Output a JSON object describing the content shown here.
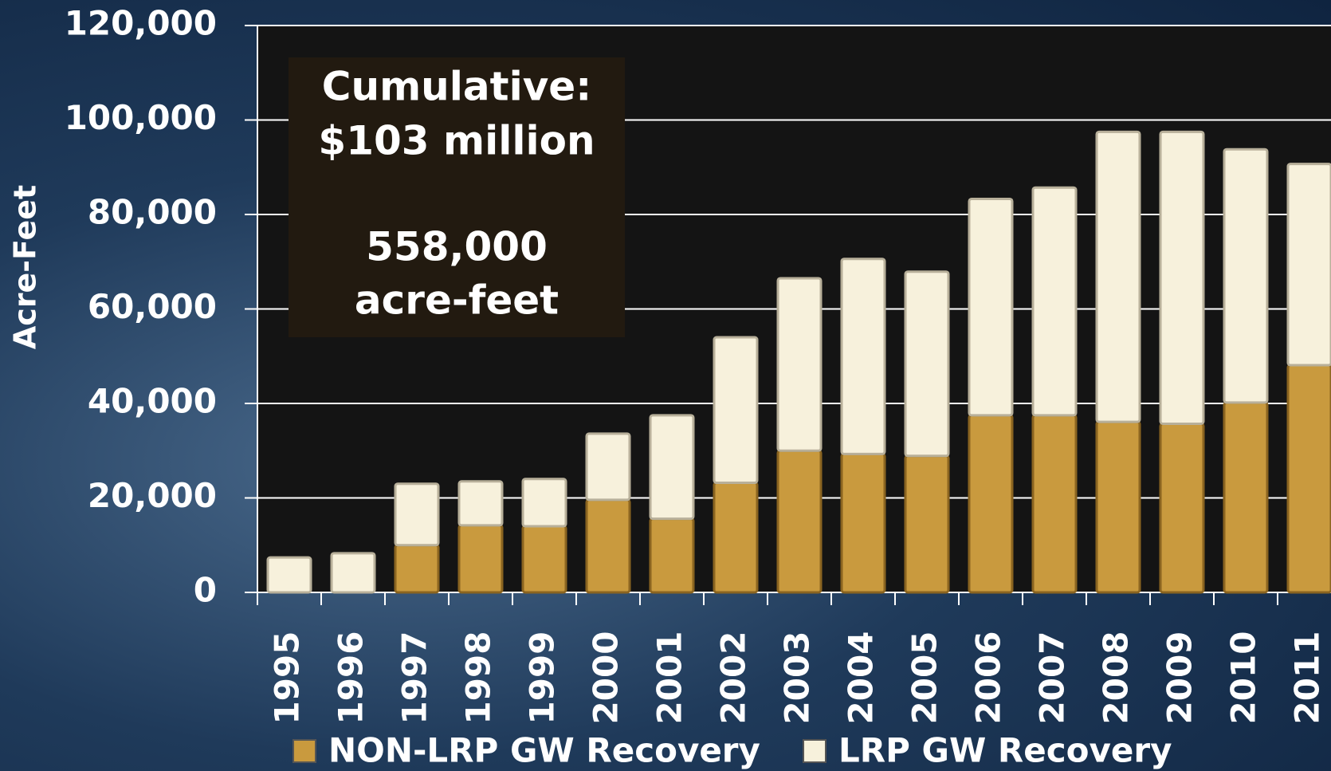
{
  "chart_data": {
    "type": "stacked_bar",
    "y_label": "Acre-Feet",
    "annotation": [
      "Cumulative:",
      "$103 million",
      "558,000",
      "acre-feet"
    ],
    "categories": [
      "1995",
      "1996",
      "1997",
      "1998",
      "1999",
      "2000",
      "2001",
      "2002",
      "2003",
      "2004",
      "2005",
      "2006",
      "2007",
      "2008",
      "2009",
      "2010",
      "2011"
    ],
    "series": [
      {
        "name": "NON-LRP GW Recovery",
        "color": "#c99a3e",
        "values": [
          0,
          0,
          10000,
          14200,
          14000,
          19600,
          15600,
          23200,
          30000,
          29300,
          28900,
          37500,
          37500,
          36100,
          35700,
          40200,
          48100
        ]
      },
      {
        "name": "LRP GW Recovery",
        "color": "#f7f1dc",
        "values": [
          7400,
          8300,
          13000,
          9300,
          10000,
          14000,
          21900,
          30800,
          36500,
          41300,
          39000,
          45800,
          48200,
          61400,
          61800,
          53600,
          42600
        ]
      }
    ],
    "ylim": [
      0,
      120000
    ],
    "yticks": [
      0,
      {
        "value": 20000,
        "label": "20,000"
      },
      {
        "value": 40000,
        "label": "40,000"
      },
      {
        "value": 60000,
        "label": "60,000"
      },
      {
        "value": 80000,
        "label": "80,000"
      },
      {
        "value": 100000,
        "label": "100,000"
      },
      {
        "value": 120000,
        "label": "120,000"
      }
    ],
    "grid": true
  }
}
